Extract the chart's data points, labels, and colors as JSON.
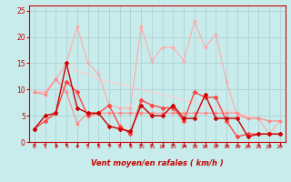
{
  "xlabel": "Vent moyen/en rafales ( km/h )",
  "bg_color": "#c8ecec",
  "grid_color": "#b0d0d0",
  "xlim": [
    -0.5,
    23.5
  ],
  "ylim": [
    0,
    26
  ],
  "yticks": [
    0,
    5,
    10,
    15,
    20,
    25
  ],
  "xticks": [
    0,
    1,
    2,
    3,
    4,
    5,
    6,
    7,
    8,
    9,
    10,
    11,
    12,
    13,
    14,
    15,
    16,
    17,
    18,
    19,
    20,
    21,
    22,
    23
  ],
  "lines": [
    {
      "y": [
        9.5,
        9.5,
        12,
        15,
        13.5,
        13,
        12,
        11.5,
        11,
        10.5,
        10,
        9.5,
        9,
        8.5,
        8,
        7.5,
        7,
        6.5,
        6,
        5.5,
        5,
        4.5,
        4,
        4
      ],
      "color": "#ffcccc",
      "lw": 0.8
    },
    {
      "y": [
        9.5,
        9.5,
        12,
        15,
        22,
        15,
        13,
        7,
        6.5,
        6.5,
        22,
        15.5,
        18,
        18,
        15.5,
        23,
        18,
        20.5,
        11.5,
        5,
        4.5,
        4.5,
        1.5,
        4
      ],
      "color": "#ffaaaa",
      "lw": 0.8
    },
    {
      "y": [
        9.5,
        9,
        12,
        9.5,
        3.5,
        5.5,
        5.5,
        5.5,
        5.5,
        5.5,
        5.5,
        5.5,
        5.5,
        5.5,
        5.5,
        5.5,
        5.5,
        5.5,
        5.5,
        5.5,
        4.5,
        4.5,
        4,
        4
      ],
      "color": "#ff8888",
      "lw": 0.8
    },
    {
      "y": [
        2.5,
        4,
        5.5,
        11.5,
        9.5,
        5,
        5.5,
        7,
        3,
        1.5,
        8,
        7,
        6.5,
        6.5,
        4,
        9.5,
        8.5,
        8.5,
        4,
        1,
        1.5,
        1.5,
        1.5,
        1.5
      ],
      "color": "#ff4444",
      "lw": 1.0,
      "marker": "D",
      "ms": 2.0
    },
    {
      "y": [
        2.5,
        5,
        5.5,
        15,
        6.5,
        5.5,
        5.5,
        3,
        2.5,
        2,
        7,
        5,
        5,
        7,
        4.5,
        4.5,
        9,
        4.5,
        4.5,
        4.5,
        1,
        1.5,
        1.5,
        1.5
      ],
      "color": "#cc0000",
      "lw": 1.0,
      "marker": "D",
      "ms": 2.0
    }
  ],
  "arrow_angles": [
    270,
    270,
    225,
    270,
    225,
    270,
    270,
    270,
    270,
    270,
    270,
    270,
    225,
    270,
    225,
    225,
    225,
    225,
    225,
    225,
    225,
    225,
    225,
    225
  ]
}
